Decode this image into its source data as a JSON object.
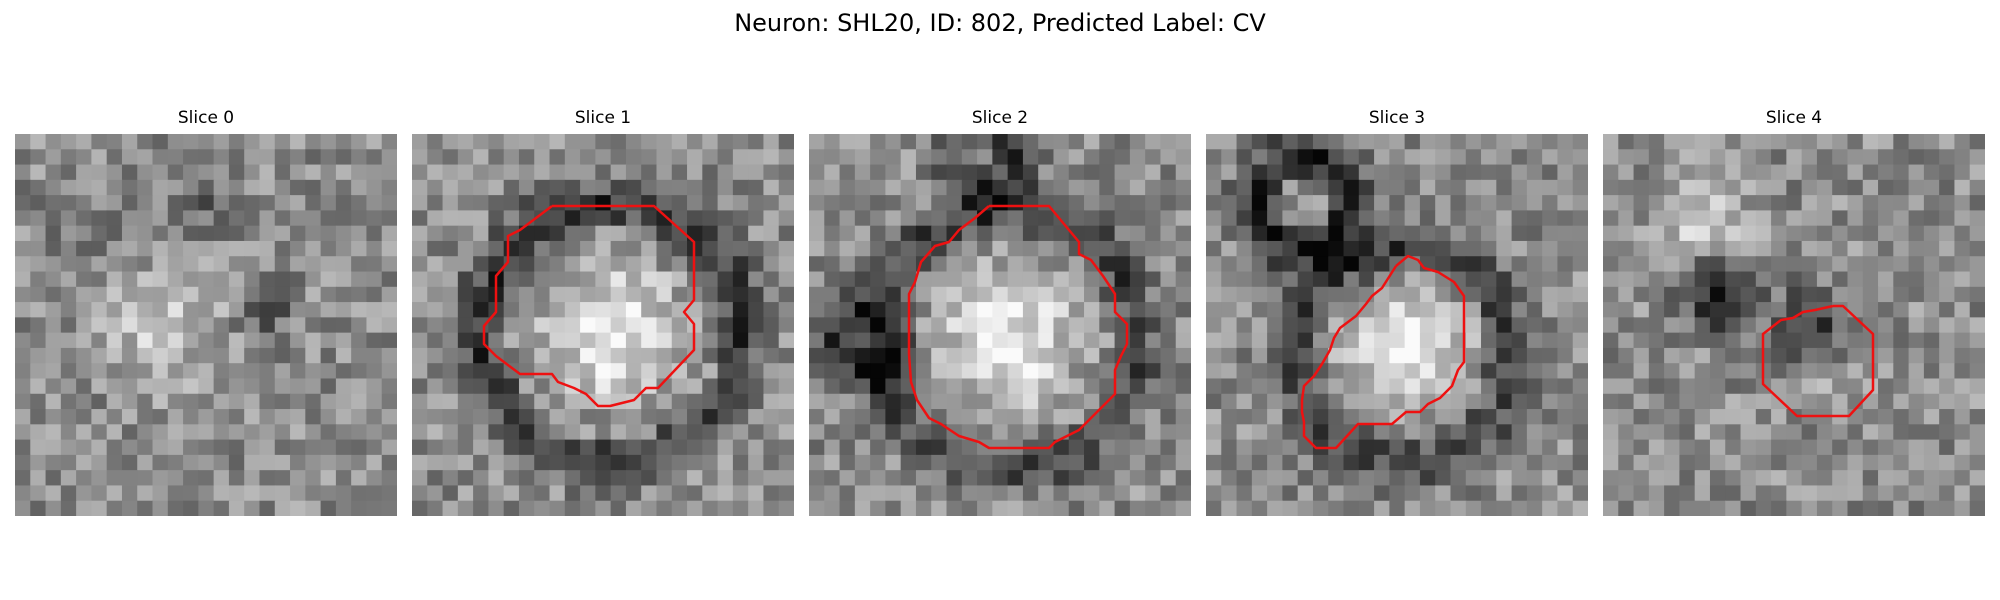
{
  "figure": {
    "title": "Neuron: SHL20, ID: 802, Predicted Label: CV"
  },
  "colors": {
    "contour": "#ee1111",
    "background": "#ffffff"
  },
  "panels": [
    {
      "title": "Slice 0",
      "has_contour": false
    },
    {
      "title": "Slice 1",
      "has_contour": true
    },
    {
      "title": "Slice 2",
      "has_contour": true
    },
    {
      "title": "Slice 3",
      "has_contour": true
    },
    {
      "title": "Slice 4",
      "has_contour": true
    }
  ]
}
